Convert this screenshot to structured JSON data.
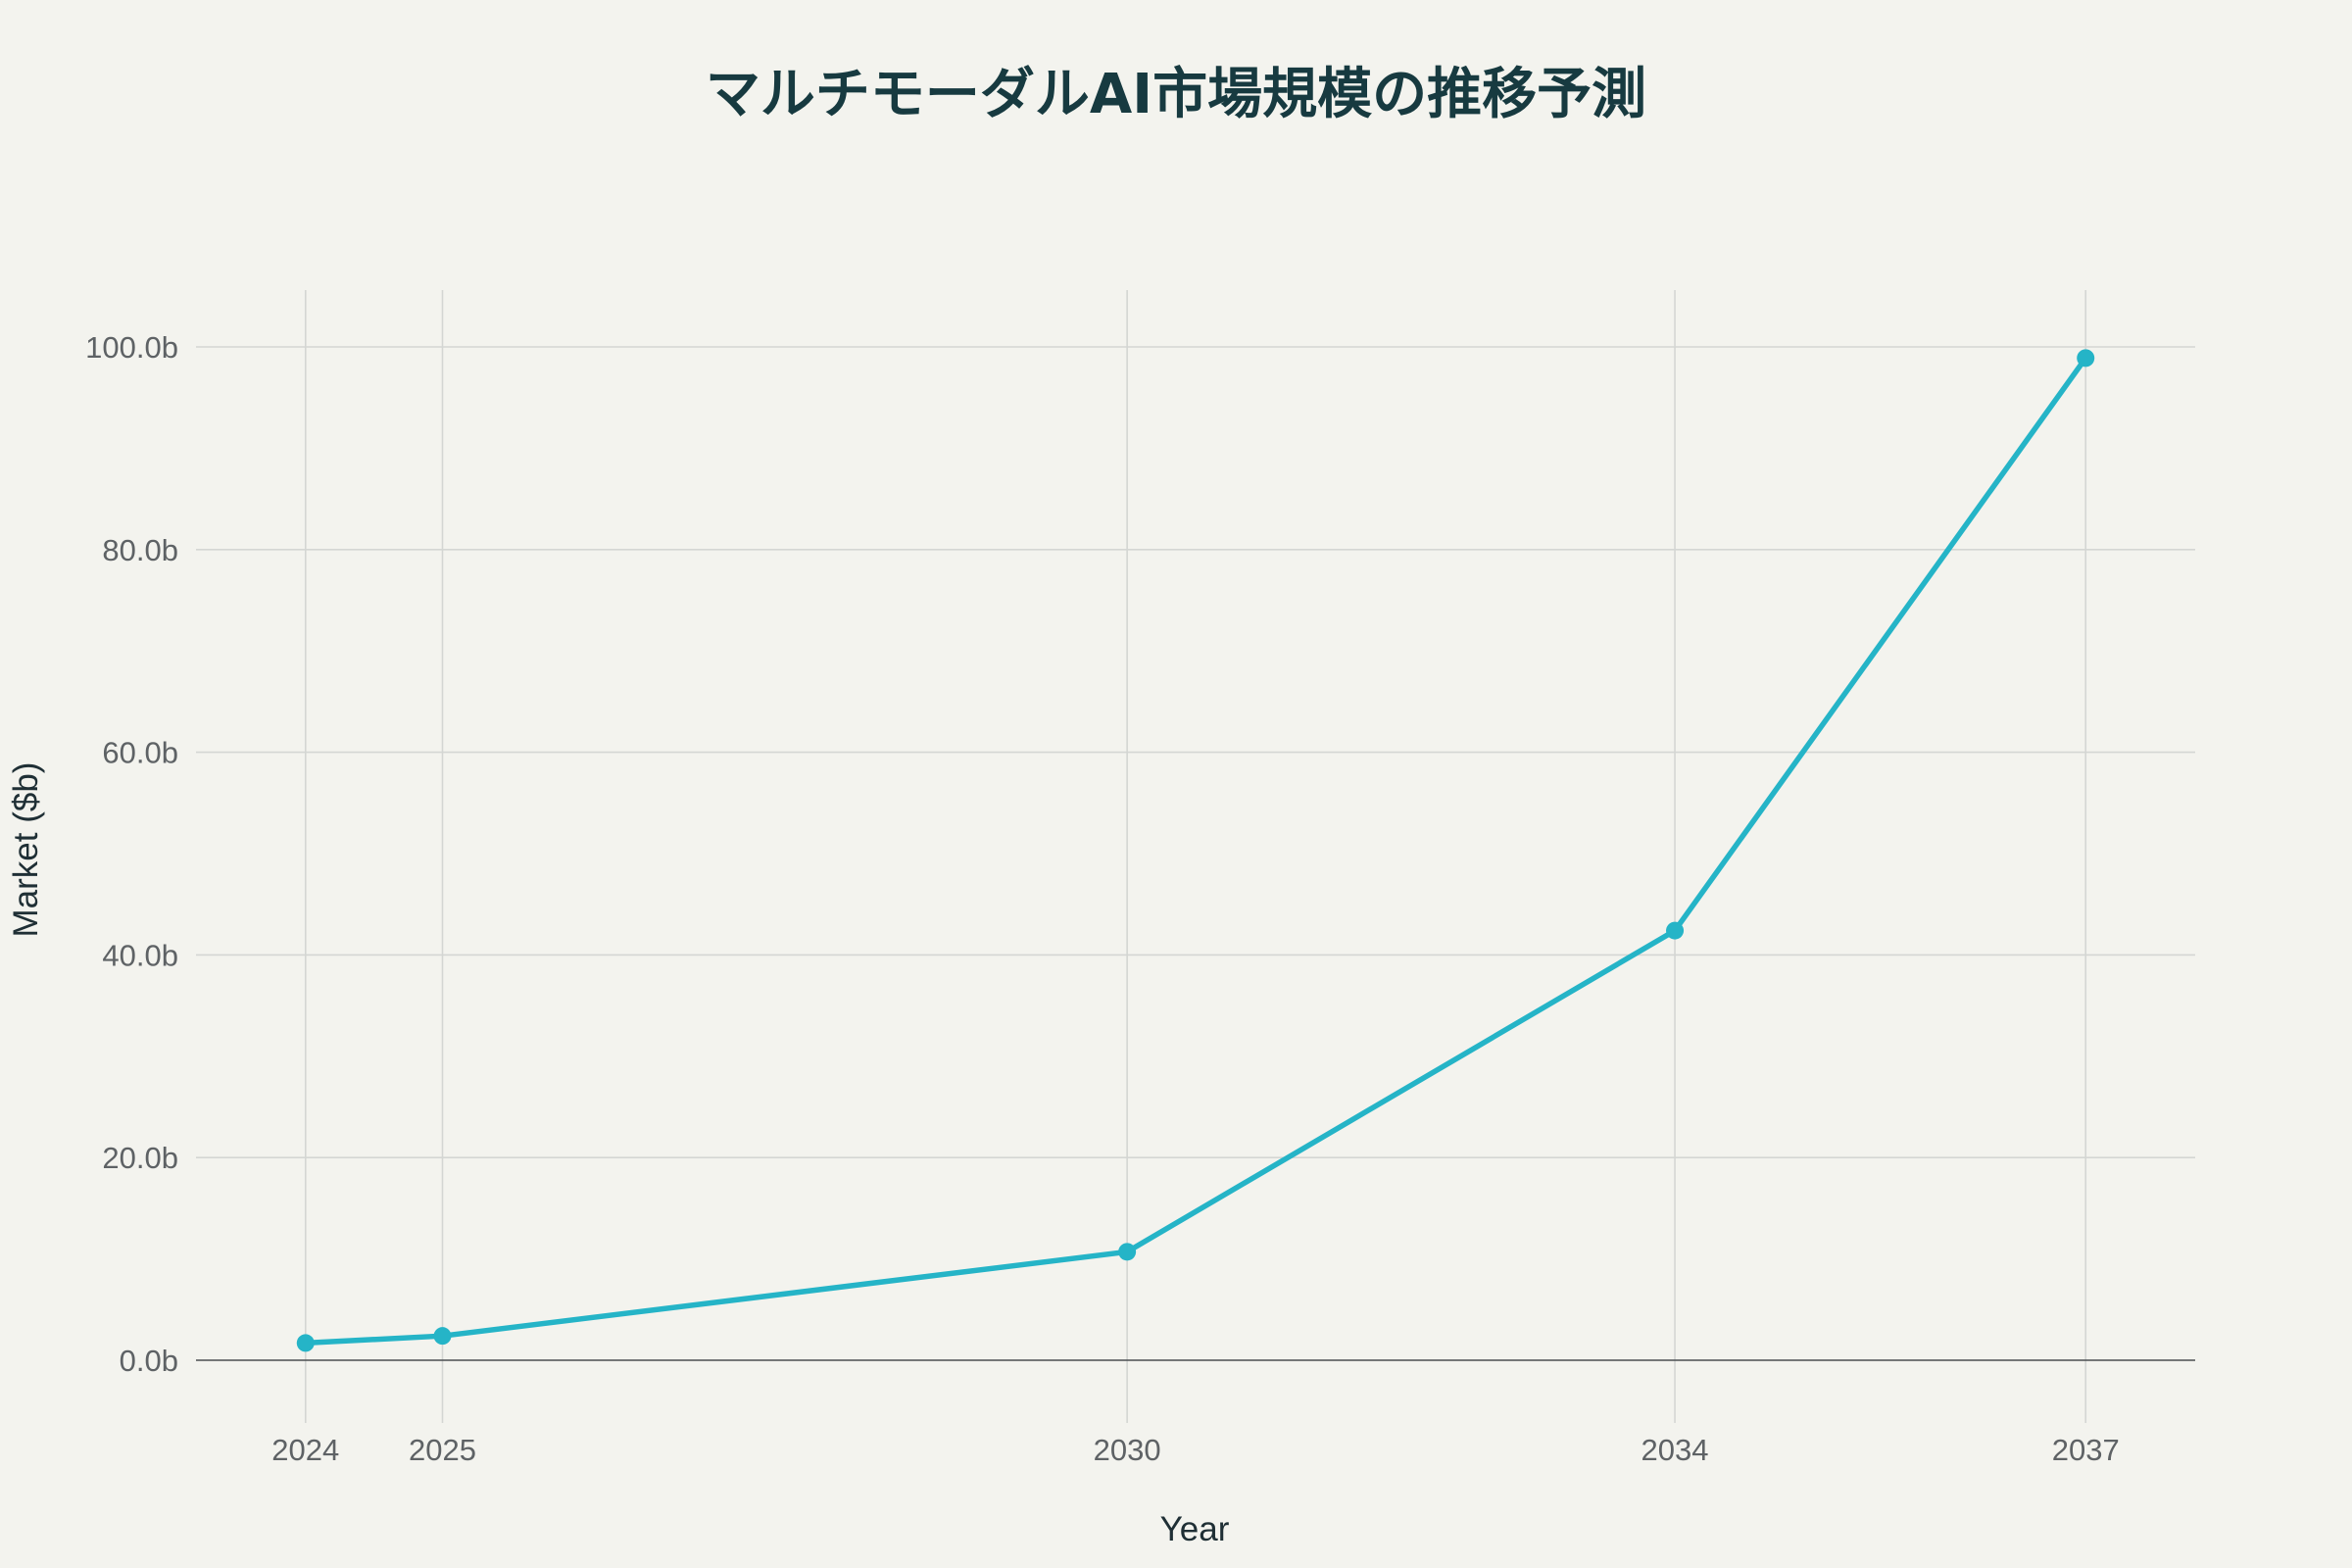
{
  "colors": {
    "background": "#F3F3EE",
    "series": "#25B4C7",
    "grid": "#D4D6D3",
    "zero_line": "#4A4E51",
    "title": "#173A40"
  },
  "chart_data": {
    "type": "line",
    "title": "マルチモーダルAI市場規模の推移予測",
    "xlabel": "Year",
    "ylabel": "Market ($b)",
    "x": [
      2024,
      2025,
      2030,
      2034,
      2037
    ],
    "series": [
      {
        "values": [
          1.7,
          2.4,
          10.7,
          42.4,
          98.9
        ]
      }
    ],
    "xlim": [
      2023.2,
      2037.8
    ],
    "ylim": [
      -6,
      106
    ],
    "x_ticks": [
      "2024",
      "2025",
      "2030",
      "2034",
      "2037"
    ],
    "y_ticks": [
      {
        "value": 0,
        "label": "0.0b"
      },
      {
        "value": 20,
        "label": "20.0b"
      },
      {
        "value": 40,
        "label": "40.0b"
      },
      {
        "value": 60,
        "label": "60.0b"
      },
      {
        "value": 80,
        "label": "80.0b"
      },
      {
        "value": 100,
        "label": "100.0b"
      }
    ],
    "grid": true,
    "legend": "none",
    "markers": true
  }
}
